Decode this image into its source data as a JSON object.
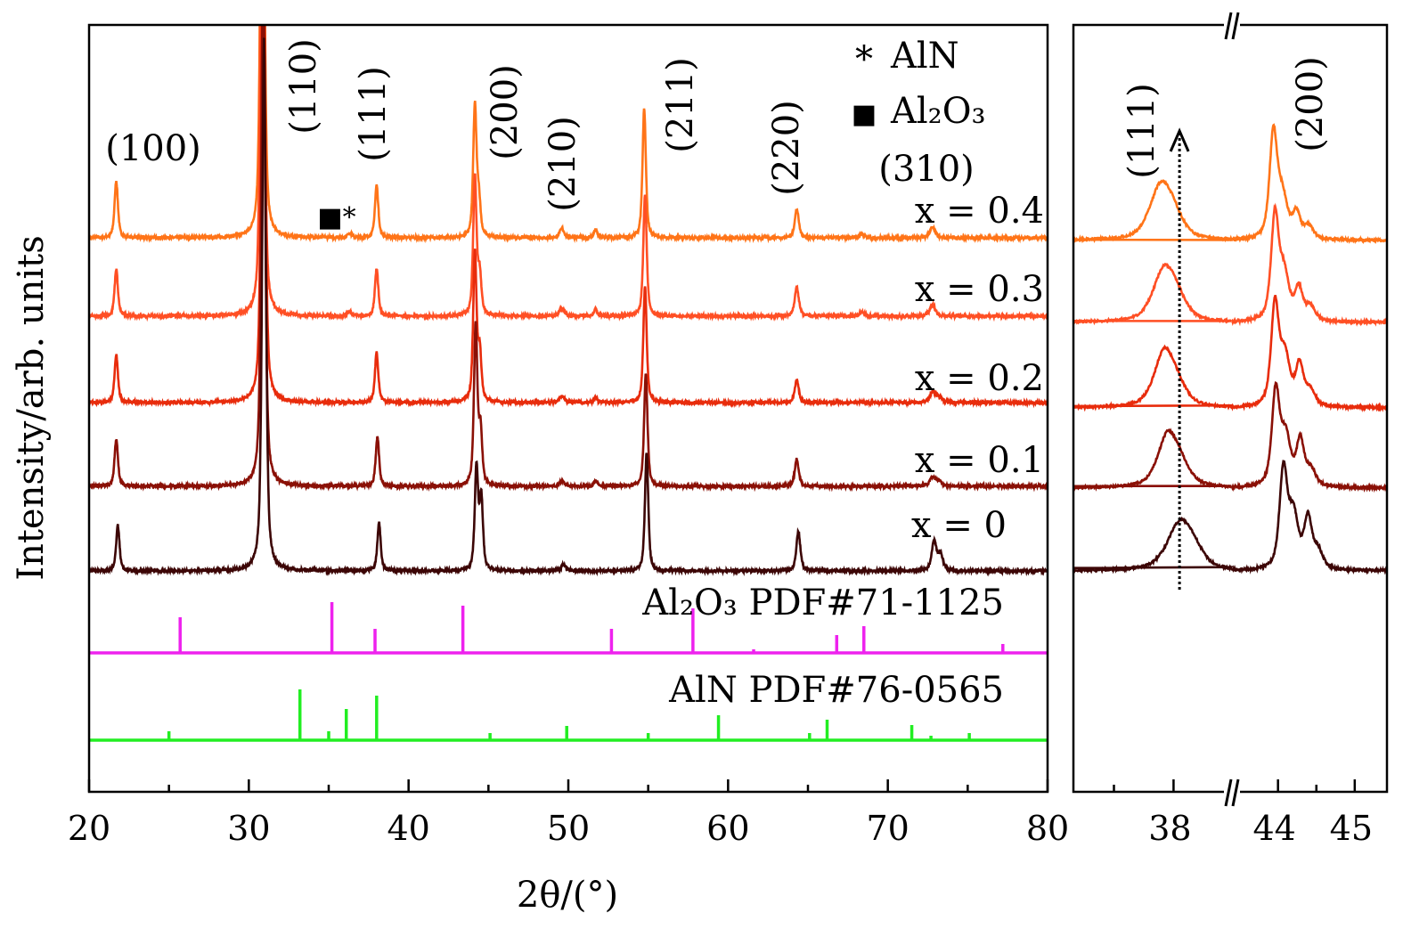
{
  "chart_data": [
    {
      "type": "line",
      "panel": "main",
      "xlabel": "2θ/(°)",
      "ylabel": "Intensity/arb. units",
      "xlim": [
        20,
        80
      ],
      "ylim": [
        0,
        861
      ],
      "xticks": [
        20,
        30,
        40,
        50,
        60,
        70,
        80
      ],
      "grid": false,
      "legend": {
        "placement": "top-right",
        "entries": [
          {
            "symbol": "*",
            "label": "AlN"
          },
          {
            "symbol": "■",
            "label": "Al₂O₃"
          }
        ]
      },
      "peak_labels": [
        "(100)",
        "(110)",
        "(111)",
        "(200)",
        "(210)",
        "(211)",
        "(220)",
        "(310)"
      ],
      "impurity_marker": "■*",
      "series": [
        {
          "name": "x = 0.4",
          "color": "#ff7418",
          "offset": 622,
          "peaks": [
            [
              21.7,
              64,
              0.25
            ],
            [
              30.85,
              600,
              0.28
            ],
            [
              36.3,
              5,
              0.3
            ],
            [
              38.0,
              59,
              0.25
            ],
            [
              44.15,
              147,
              0.25
            ],
            [
              44.4,
              40,
              0.25
            ],
            [
              49.6,
              10,
              0.35
            ],
            [
              51.7,
              9,
              0.25
            ],
            [
              54.75,
              145,
              0.25
            ],
            [
              64.3,
              32,
              0.3
            ],
            [
              68.4,
              4,
              0.4
            ],
            [
              72.8,
              12,
              0.4
            ]
          ]
        },
        {
          "name": "x = 0.3",
          "color": "#ff4f24",
          "offset": 534,
          "peaks": [
            [
              21.7,
              53,
              0.25
            ],
            [
              30.85,
              600,
              0.28
            ],
            [
              36.3,
              5,
              0.3
            ],
            [
              38.0,
              53,
              0.25
            ],
            [
              44.15,
              155,
              0.25
            ],
            [
              44.45,
              45,
              0.25
            ],
            [
              49.6,
              9,
              0.35
            ],
            [
              51.7,
              8,
              0.25
            ],
            [
              54.8,
              137,
              0.25
            ],
            [
              64.3,
              33,
              0.3
            ],
            [
              68.4,
              4,
              0.4
            ],
            [
              72.8,
              13,
              0.4
            ]
          ]
        },
        {
          "name": "x = 0.2",
          "color": "#e82c0c",
          "offset": 437,
          "peaks": [
            [
              21.7,
              54,
              0.25
            ],
            [
              30.9,
              600,
              0.28
            ],
            [
              38.0,
              56,
              0.25
            ],
            [
              44.15,
              167,
              0.25
            ],
            [
              44.45,
              55,
              0.25
            ],
            [
              49.6,
              7,
              0.35
            ],
            [
              51.7,
              6,
              0.25
            ],
            [
              54.8,
              130,
              0.25
            ],
            [
              64.3,
              25,
              0.3
            ],
            [
              72.8,
              12,
              0.4
            ],
            [
              73.2,
              6,
              0.4
            ]
          ]
        },
        {
          "name": "x = 0.1",
          "color": "#8a1006",
          "offset": 343,
          "peaks": [
            [
              21.7,
              53,
              0.25
            ],
            [
              30.9,
              600,
              0.28
            ],
            [
              38.05,
              56,
              0.25
            ],
            [
              44.2,
              181,
              0.25
            ],
            [
              44.5,
              60,
              0.25
            ],
            [
              49.6,
              6,
              0.35
            ],
            [
              51.7,
              6,
              0.25
            ],
            [
              54.85,
              127,
              0.25
            ],
            [
              64.3,
              30,
              0.3
            ],
            [
              72.8,
              10,
              0.4
            ],
            [
              73.2,
              6,
              0.4
            ]
          ]
        },
        {
          "name": "x = 0",
          "color": "#3c0606",
          "offset": 248,
          "peaks": [
            [
              21.8,
              51,
              0.25
            ],
            [
              30.95,
              600,
              0.28
            ],
            [
              38.15,
              54,
              0.25
            ],
            [
              44.25,
              116,
              0.25
            ],
            [
              44.55,
              80,
              0.25
            ],
            [
              49.7,
              7,
              0.35
            ],
            [
              54.9,
              133,
              0.25
            ],
            [
              64.4,
              44,
              0.3
            ],
            [
              72.9,
              33,
              0.35
            ],
            [
              73.3,
              18,
              0.35
            ]
          ]
        }
      ],
      "references": [
        {
          "name": "Al₂O₃ PDF#71-1125",
          "color": "#ee22ee",
          "offset": 156,
          "sticks": [
            [
              25.7,
              40
            ],
            [
              35.2,
              57
            ],
            [
              37.9,
              27
            ],
            [
              43.4,
              53
            ],
            [
              52.7,
              27
            ],
            [
              57.8,
              50
            ],
            [
              61.6,
              4
            ],
            [
              66.8,
              20
            ],
            [
              68.5,
              30
            ],
            [
              77.2,
              10
            ]
          ]
        },
        {
          "name": "AlN PDF#76-0565",
          "color": "#22ee22",
          "offset": 58,
          "sticks": [
            [
              25.0,
              10
            ],
            [
              33.2,
              57
            ],
            [
              35.0,
              10
            ],
            [
              36.1,
              35
            ],
            [
              38.0,
              50
            ],
            [
              45.1,
              8
            ],
            [
              49.9,
              16
            ],
            [
              55.0,
              8
            ],
            [
              59.4,
              28
            ],
            [
              65.1,
              8
            ],
            [
              66.2,
              23
            ],
            [
              71.5,
              17
            ],
            [
              72.7,
              5
            ],
            [
              75.1,
              8
            ]
          ]
        }
      ]
    },
    {
      "type": "line",
      "panel": "zoom",
      "broken_axis": true,
      "segments": [
        [
          37.16,
          38.49
        ],
        [
          43.4,
          45.42
        ]
      ],
      "xticks": [
        38,
        44,
        45
      ],
      "minor_xticks": [
        37.5,
        44.5
      ],
      "ylim": [
        0,
        861
      ],
      "peak_labels": [
        "(111)",
        "(200)"
      ],
      "arrow": {
        "x": 38.05,
        "style": "dotted"
      },
      "series": [
        {
          "name": "x = 0.4",
          "color": "#ff7418",
          "offset": 619,
          "peaks": [
            [
              37.89,
              57,
              0.22
            ],
            [
              38.0,
              20,
              0.2
            ],
            [
              43.94,
              118,
              0.12
            ],
            [
              44.06,
              45,
              0.15
            ],
            [
              44.24,
              28,
              0.12
            ],
            [
              44.4,
              14,
              0.15
            ]
          ]
        },
        {
          "name": "x = 0.3",
          "color": "#ff4f24",
          "offset": 527,
          "peaks": [
            [
              37.92,
              56,
              0.22
            ],
            [
              38.03,
              18,
              0.2
            ],
            [
              43.96,
              116,
              0.12
            ],
            [
              44.08,
              50,
              0.15
            ],
            [
              44.27,
              35,
              0.12
            ],
            [
              44.42,
              16,
              0.15
            ]
          ]
        },
        {
          "name": "x = 0.2",
          "color": "#e82c0c",
          "offset": 431,
          "peaks": [
            [
              37.92,
              59,
              0.2
            ],
            [
              38.03,
              18,
              0.2
            ],
            [
              43.96,
              113,
              0.12
            ],
            [
              44.09,
              55,
              0.15
            ],
            [
              44.28,
              45,
              0.12
            ],
            [
              44.42,
              18,
              0.15
            ]
          ]
        },
        {
          "name": "x = 0.1",
          "color": "#8a1006",
          "offset": 341,
          "peaks": [
            [
              37.95,
              56,
              0.2
            ],
            [
              38.06,
              18,
              0.2
            ],
            [
              43.97,
              106,
              0.12
            ],
            [
              44.1,
              55,
              0.15
            ],
            [
              44.29,
              50,
              0.12
            ],
            [
              44.43,
              18,
              0.15
            ]
          ]
        },
        {
          "name": "x = 0",
          "color": "#3c0606",
          "offset": 248,
          "peaks": [
            [
              38.05,
              51,
              0.25
            ],
            [
              38.17,
              15,
              0.2
            ],
            [
              44.07,
              110,
              0.12
            ],
            [
              44.2,
              60,
              0.15
            ],
            [
              44.39,
              55,
              0.12
            ],
            [
              44.52,
              20,
              0.15
            ]
          ]
        }
      ]
    }
  ]
}
